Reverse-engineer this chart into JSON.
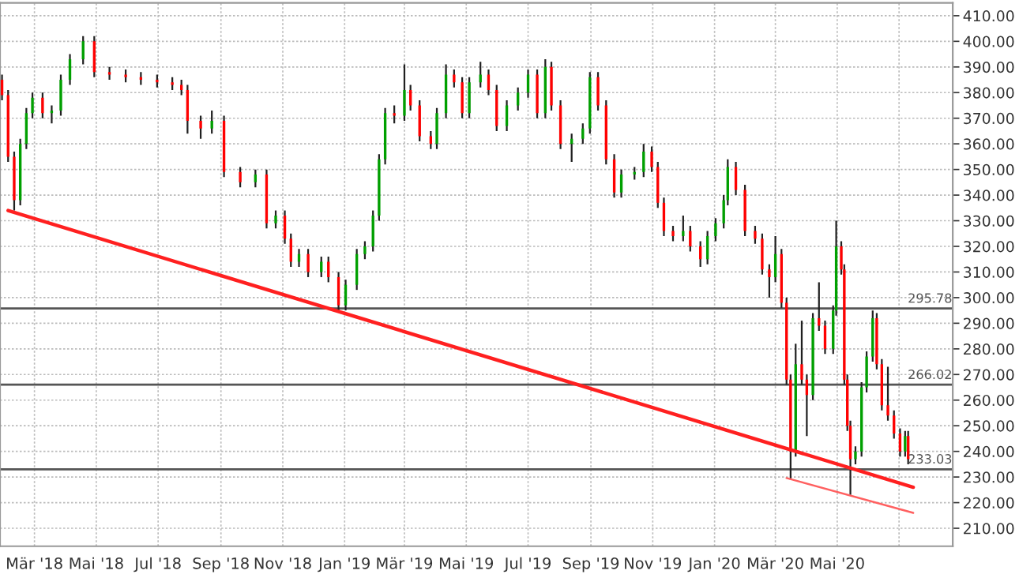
{
  "chart_data": {
    "type": "candlestick",
    "x": [
      "2018-01-28",
      "2018-02-03",
      "2018-02-09",
      "2018-02-15",
      "2018-02-21",
      "2018-02-27",
      "2018-03-09",
      "2018-03-18",
      "2018-03-27",
      "2018-04-05",
      "2018-04-18",
      "2018-04-29",
      "2018-05-14",
      "2018-05-30",
      "2018-06-14",
      "2018-06-30",
      "2018-07-15",
      "2018-07-24",
      "2018-07-30",
      "2018-08-12",
      "2018-08-23",
      "2018-09-04",
      "2018-09-20",
      "2018-10-05",
      "2018-10-16",
      "2018-10-25",
      "2018-11-03",
      "2018-11-09",
      "2018-11-17",
      "2018-11-26",
      "2018-12-09",
      "2018-12-16",
      "2018-12-26",
      "2019-01-02",
      "2019-01-13",
      "2019-01-21",
      "2019-01-29",
      "2019-02-04",
      "2019-02-10",
      "2019-02-19",
      "2019-03-01",
      "2019-03-07",
      "2019-03-16",
      "2019-03-27",
      "2019-04-02",
      "2019-04-11",
      "2019-04-19",
      "2019-04-27",
      "2019-05-04",
      "2019-05-15",
      "2019-05-23",
      "2019-05-31",
      "2019-06-10",
      "2019-06-21",
      "2019-07-01",
      "2019-07-10",
      "2019-07-18",
      "2019-07-24",
      "2019-08-02",
      "2019-08-13",
      "2019-08-24",
      "2019-08-31",
      "2019-09-08",
      "2019-09-16",
      "2019-09-24",
      "2019-10-01",
      "2019-10-14",
      "2019-10-23",
      "2019-10-31",
      "2019-11-06",
      "2019-11-12",
      "2019-11-21",
      "2019-12-01",
      "2019-12-08",
      "2019-12-18",
      "2019-12-25",
      "2020-01-02",
      "2020-01-10",
      "2020-01-14",
      "2020-01-22",
      "2020-01-31",
      "2020-02-10",
      "2020-02-17",
      "2020-02-24",
      "2020-03-01",
      "2020-03-07",
      "2020-03-12",
      "2020-03-16",
      "2020-03-21",
      "2020-03-27",
      "2020-04-01",
      "2020-04-07",
      "2020-04-13",
      "2020-04-19",
      "2020-04-27",
      "2020-04-30",
      "2020-05-05",
      "2020-05-08",
      "2020-05-11",
      "2020-05-14",
      "2020-05-19",
      "2020-05-25",
      "2020-05-30",
      "2020-06-05",
      "2020-06-09",
      "2020-06-14",
      "2020-06-20",
      "2020-06-26",
      "2020-07-02",
      "2020-07-07",
      "2020-07-10"
    ],
    "ohlc": [
      [
        385,
        387,
        377,
        379
      ],
      [
        379,
        381,
        353,
        355
      ],
      [
        355,
        357,
        334,
        338
      ],
      [
        338,
        362,
        336,
        360
      ],
      [
        360,
        374,
        358,
        372
      ],
      [
        372,
        380,
        370,
        378
      ],
      [
        378,
        380,
        370,
        372
      ],
      [
        372,
        375,
        368,
        373
      ],
      [
        373,
        387,
        371,
        385
      ],
      [
        385,
        395,
        383,
        393
      ],
      [
        393,
        402,
        391,
        400
      ],
      [
        400,
        402,
        386,
        388
      ],
      [
        388,
        390,
        385,
        387
      ],
      [
        387,
        389,
        384,
        386
      ],
      [
        386,
        388,
        383,
        385
      ],
      [
        385,
        387,
        382,
        384
      ],
      [
        384,
        386,
        381,
        383
      ],
      [
        383,
        385,
        379,
        381
      ],
      [
        381,
        383,
        364,
        369
      ],
      [
        369,
        371,
        362,
        366
      ],
      [
        366,
        373,
        364,
        369
      ],
      [
        369,
        371,
        347,
        349
      ],
      [
        349,
        351,
        343,
        345
      ],
      [
        345,
        350,
        343,
        348
      ],
      [
        348,
        350,
        327,
        329
      ],
      [
        329,
        334,
        327,
        332
      ],
      [
        332,
        334,
        321,
        323
      ],
      [
        323,
        325,
        312,
        314
      ],
      [
        314,
        319,
        312,
        317
      ],
      [
        317,
        319,
        308,
        310
      ],
      [
        310,
        316,
        308,
        314
      ],
      [
        314,
        316,
        306,
        308
      ],
      [
        308,
        310,
        295,
        297
      ],
      [
        297,
        307,
        295,
        305
      ],
      [
        305,
        319,
        303,
        317
      ],
      [
        317,
        322,
        315,
        320
      ],
      [
        320,
        334,
        318,
        332
      ],
      [
        332,
        356,
        330,
        354
      ],
      [
        354,
        374,
        352,
        372
      ],
      [
        372,
        375,
        368,
        371
      ],
      [
        371,
        391,
        369,
        381
      ],
      [
        381,
        383,
        373,
        375
      ],
      [
        375,
        377,
        361,
        363
      ],
      [
        363,
        365,
        358,
        360
      ],
      [
        360,
        374,
        358,
        372
      ],
      [
        372,
        391,
        370,
        387
      ],
      [
        387,
        389,
        382,
        384
      ],
      [
        384,
        386,
        370,
        372
      ],
      [
        372,
        386,
        370,
        384
      ],
      [
        384,
        392,
        382,
        387
      ],
      [
        387,
        389,
        379,
        381
      ],
      [
        381,
        383,
        365,
        367
      ],
      [
        367,
        377,
        365,
        375
      ],
      [
        375,
        382,
        373,
        380
      ],
      [
        380,
        389,
        378,
        387
      ],
      [
        387,
        389,
        370,
        372
      ],
      [
        372,
        393,
        370,
        390
      ],
      [
        390,
        392,
        373,
        375
      ],
      [
        375,
        377,
        358,
        360
      ],
      [
        360,
        364,
        353,
        362
      ],
      [
        362,
        368,
        360,
        366
      ],
      [
        366,
        388,
        364,
        386
      ],
      [
        386,
        388,
        373,
        375
      ],
      [
        375,
        377,
        352,
        354
      ],
      [
        354,
        356,
        339,
        341
      ],
      [
        341,
        350,
        339,
        348
      ],
      [
        348,
        351,
        346,
        349
      ],
      [
        349,
        360,
        347,
        357
      ],
      [
        357,
        359,
        349,
        351
      ],
      [
        351,
        353,
        335,
        337
      ],
      [
        337,
        339,
        324,
        326
      ],
      [
        326,
        328,
        322,
        324
      ],
      [
        324,
        332,
        322,
        326
      ],
      [
        326,
        328,
        318,
        320
      ],
      [
        320,
        322,
        312,
        315
      ],
      [
        315,
        326,
        313,
        324
      ],
      [
        324,
        331,
        322,
        329
      ],
      [
        329,
        340,
        327,
        338
      ],
      [
        338,
        354,
        336,
        351
      ],
      [
        351,
        353,
        340,
        342
      ],
      [
        342,
        344,
        324,
        326
      ],
      [
        326,
        328,
        321,
        323
      ],
      [
        323,
        325,
        309,
        311
      ],
      [
        311,
        313,
        300,
        308
      ],
      [
        308,
        324,
        306,
        317
      ],
      [
        317,
        319,
        296,
        298
      ],
      [
        298,
        300,
        266,
        268
      ],
      [
        268,
        270,
        229,
        240
      ],
      [
        240,
        282,
        238,
        274
      ],
      [
        274,
        291,
        266,
        268
      ],
      [
        268,
        270,
        246,
        262
      ],
      [
        262,
        294,
        260,
        292
      ],
      [
        292,
        306,
        287,
        289
      ],
      [
        289,
        291,
        278,
        280
      ],
      [
        280,
        297,
        278,
        295
      ],
      [
        295,
        330,
        293,
        320
      ],
      [
        320,
        322,
        309,
        311
      ],
      [
        311,
        313,
        266,
        268
      ],
      [
        268,
        270,
        248,
        250
      ],
      [
        250,
        252,
        223,
        237
      ],
      [
        237,
        242,
        235,
        240
      ],
      [
        240,
        267,
        238,
        265
      ],
      [
        265,
        279,
        263,
        277
      ],
      [
        277,
        295,
        275,
        292
      ],
      [
        292,
        294,
        272,
        274
      ],
      [
        274,
        276,
        256,
        258
      ],
      [
        258,
        273,
        252,
        254
      ],
      [
        254,
        256,
        245,
        247
      ],
      [
        247,
        249,
        238,
        240
      ],
      [
        240,
        248,
        238,
        246
      ],
      [
        246,
        248,
        235,
        237
      ]
    ],
    "series": [
      {
        "type": "line",
        "color": "#ff2020",
        "x": [
          "2018-02-03",
          "2020-07-15"
        ],
        "values": [
          334,
          226
        ]
      },
      {
        "type": "line",
        "color": "#ff6060",
        "x": [
          "2020-03-12",
          "2020-07-15"
        ],
        "values": [
          229.6,
          216
        ]
      }
    ],
    "ref_lines": [
      {
        "axis": "y",
        "value": 295.78,
        "label": "295.78",
        "color": "#555555"
      },
      {
        "axis": "y",
        "value": 266.02,
        "label": "266.02",
        "color": "#555555"
      },
      {
        "axis": "y",
        "value": 233.03,
        "label": "233.03",
        "color": "#555555"
      }
    ],
    "xlim": [
      "2018-01-26",
      "2020-08-23"
    ],
    "xticks": [
      {
        "value": "2018-03-01",
        "label": "Mär '18"
      },
      {
        "value": "2018-05-01",
        "label": "Mai '18"
      },
      {
        "value": "2018-07-01",
        "label": "Jul '18"
      },
      {
        "value": "2018-09-01",
        "label": "Sep '18"
      },
      {
        "value": "2018-11-01",
        "label": "Nov '18"
      },
      {
        "value": "2019-01-01",
        "label": "Jan '19"
      },
      {
        "value": "2019-03-01",
        "label": "Mär '19"
      },
      {
        "value": "2019-05-01",
        "label": "Mai '19"
      },
      {
        "value": "2019-07-01",
        "label": "Jul '19"
      },
      {
        "value": "2019-09-01",
        "label": "Sep '19"
      },
      {
        "value": "2019-11-01",
        "label": "Nov '19"
      },
      {
        "value": "2020-01-01",
        "label": "Jan '20"
      },
      {
        "value": "2020-03-01",
        "label": "Mär '20"
      },
      {
        "value": "2020-05-01",
        "label": "Mai '20"
      },
      {
        "value": "2020-07-01",
        "label": null
      }
    ],
    "ylim": [
      203,
      415
    ],
    "yticks": [
      {
        "value": 210,
        "label": "210.00"
      },
      {
        "value": 220,
        "label": "220.00"
      },
      {
        "value": 230,
        "label": "230.00"
      },
      {
        "value": 240,
        "label": "240.00"
      },
      {
        "value": 250,
        "label": "250.00"
      },
      {
        "value": 260,
        "label": "260.00"
      },
      {
        "value": 270,
        "label": "270.00"
      },
      {
        "value": 280,
        "label": "280.00"
      },
      {
        "value": 290,
        "label": "290.00"
      },
      {
        "value": 300,
        "label": "300.00"
      },
      {
        "value": 310,
        "label": "310.00"
      },
      {
        "value": 320,
        "label": "320.00"
      },
      {
        "value": 330,
        "label": "330.00"
      },
      {
        "value": 340,
        "label": "340.00"
      },
      {
        "value": 350,
        "label": "350.00"
      },
      {
        "value": 360,
        "label": "360.00"
      },
      {
        "value": 370,
        "label": "370.00"
      },
      {
        "value": 380,
        "label": "380.00"
      },
      {
        "value": 390,
        "label": "390.00"
      },
      {
        "value": 400,
        "label": "400.00"
      },
      {
        "value": 410,
        "label": "410.00"
      }
    ],
    "grid": true,
    "legend": false
  }
}
